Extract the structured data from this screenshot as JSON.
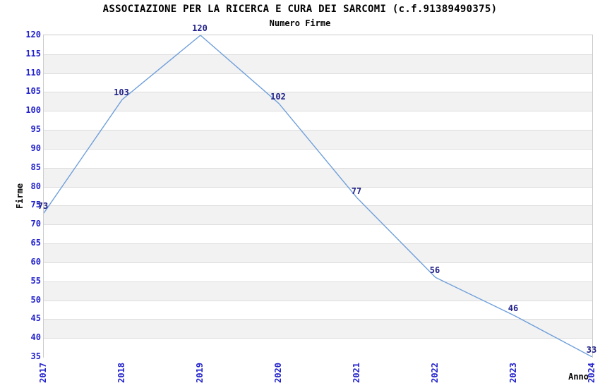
{
  "title": "ASSOCIAZIONE PER LA RICERCA E CURA DEI SARCOMI (c.f.91389490375)",
  "subtitle": "Numero Firme",
  "axes": {
    "y_label": "Firme",
    "x_label": "Anno"
  },
  "chart_data": {
    "type": "line",
    "title": "ASSOCIAZIONE PER LA RICERCA E CURA DEI SARCOMI (c.f.91389490375)",
    "subtitle": "Numero Firme",
    "xlabel": "Anno",
    "ylabel": "Firme",
    "categories": [
      "2017",
      "2018",
      "2019",
      "2020",
      "2021",
      "2022",
      "2023",
      "2024"
    ],
    "series": [
      {
        "name": "Numero Firme",
        "values": [
          73,
          103,
          120,
          102,
          77,
          56,
          46,
          33
        ]
      }
    ],
    "ylim": [
      35,
      120
    ],
    "ytick_step": 5,
    "grid": "alternating-horizontal-bands",
    "legend_position": "none",
    "colors": {
      "line": "#6F9FDB",
      "axis_tick_label": "#2222CC",
      "data_label": "#202088",
      "band_fill": "#F2F2F2",
      "gridline": "#DDDDDD",
      "plot_border": "#CCCCCC",
      "title_text": "#000000",
      "background": "#FFFFFF"
    }
  }
}
